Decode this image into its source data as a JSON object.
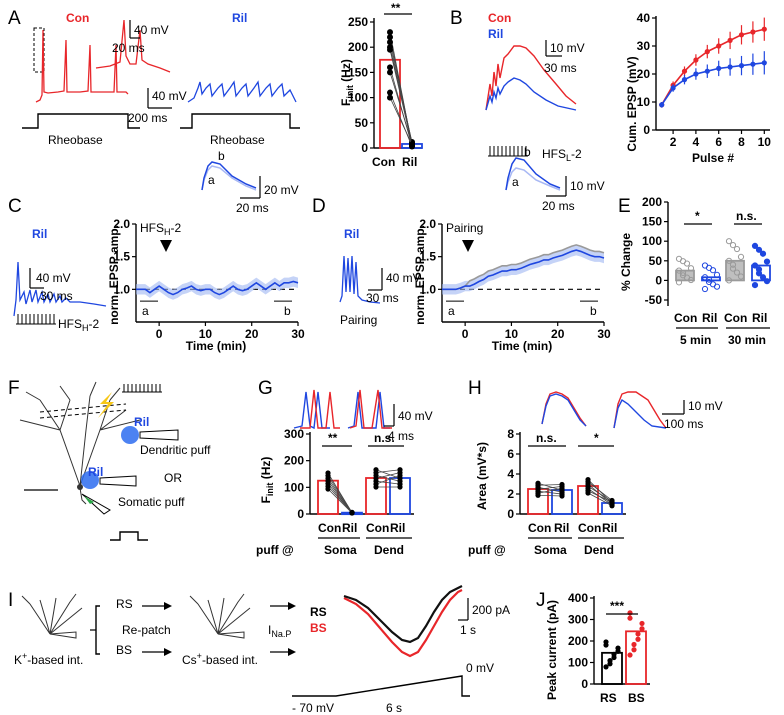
{
  "panels": {
    "A": {
      "label": "A",
      "con": "Con",
      "ril": "Ril",
      "sb_mv": "40 mV",
      "sb_ms": "20 ms",
      "sb_mv2": "40 mV",
      "sb_ms2": "200 ms",
      "step": "Rheobase",
      "bar": {
        "ylabel": "F",
        "ysub": "init",
        "yunit": " (Hz)",
        "ticks": [
          "0",
          "50",
          "100",
          "150",
          "200",
          "250"
        ],
        "ylim": [
          0,
          250
        ],
        "cats": [
          "Con",
          "Ril"
        ],
        "means": [
          175,
          8
        ],
        "sig": "**",
        "pairs": [
          [
            230,
            5
          ],
          [
            220,
            8
          ],
          [
            210,
            10
          ],
          [
            200,
            12
          ],
          [
            195,
            6
          ],
          [
            160,
            4
          ],
          [
            150,
            9
          ],
          [
            110,
            3
          ],
          [
            100,
            7
          ]
        ]
      }
    },
    "B": {
      "label": "B",
      "con": "Con",
      "ril": "Ril",
      "sb_mv": "10 mV",
      "sb_ms": "30 ms",
      "stim": "HFS",
      "stim_sub": "L",
      "stim_suf": "-2"
    },
    "C": {
      "label": "C",
      "ril": "Ril",
      "sb_mv": "40 mV",
      "sb_ms": "30 ms",
      "stim": "HFS",
      "stim_sub": "H",
      "stim_suf": "-2",
      "ins_mv": "20 mV",
      "ins_ms": "20 ms",
      "ins_a": "a",
      "ins_b": "b",
      "ylabel": "norm. EPSP amp.",
      "xlabel": "Time (min)",
      "yticks": [
        "1.0",
        "1.5",
        "2.0"
      ],
      "xticks": [
        "0",
        "10",
        "20",
        "30"
      ],
      "marker_a": "a",
      "marker_b": "b",
      "arrow_label": "HFS"
    },
    "D": {
      "label": "D",
      "ril": "Ril",
      "sb_mv": "40 mV",
      "sb_ms": "30 ms",
      "stim": "Pairing",
      "ins_mv": "10 mV",
      "ins_ms": "20 ms",
      "ins_a": "a",
      "ins_b": "b",
      "ylabel": "norm. EPSP amp.",
      "xlabel": "Time (min)",
      "yticks": [
        "1.0",
        "1.5",
        "2.0"
      ],
      "xticks": [
        "0",
        "10",
        "20",
        "30"
      ],
      "marker_a": "a",
      "marker_b": "b",
      "arrow_label": "Pairing"
    },
    "E": {
      "label": "E",
      "ylabel": "% Change",
      "yticks": [
        "-50",
        "0",
        "50",
        "100",
        "150",
        "200"
      ],
      "sig1": "*",
      "sig2": "n.s.",
      "cats": [
        "Con",
        "Ril",
        "Con",
        "Ril"
      ],
      "groups": [
        "5 min",
        "30 min"
      ],
      "means": [
        25,
        8,
        50,
        38
      ]
    },
    "F": {
      "label": "F",
      "ril1": "Ril",
      "ril2": "Ril",
      "dend": "Dendritic puff",
      "or": "OR",
      "soma": "Somatic puff"
    },
    "G": {
      "label": "G",
      "sb_mv": "40 mV",
      "sb_ms": "4 ms",
      "ylabel": "F",
      "ysub": "init",
      "yunit": " (Hz)",
      "yticks": [
        "0",
        "100",
        "200",
        "300"
      ],
      "sig1": "**",
      "sig2": "n.s.",
      "cats": [
        "Con",
        "Ril",
        "Con",
        "Ril"
      ],
      "puff": "puff @",
      "groups": [
        "Soma",
        "Dend"
      ],
      "means": [
        125,
        5,
        135,
        135
      ]
    },
    "H": {
      "label": "H",
      "sb_mv": "10 mV",
      "sb_ms": "100 ms",
      "ylabel": "Area (mV*s)",
      "yticks": [
        "0",
        "2",
        "4",
        "6",
        "8"
      ],
      "sig1": "n.s.",
      "sig2": "*",
      "cats": [
        "Con",
        "Ril",
        "Con",
        "Ril"
      ],
      "puff": "puff @",
      "groups": [
        "Soma",
        "Dend"
      ],
      "means": [
        2.5,
        2.4,
        2.8,
        1.1
      ]
    },
    "I": {
      "label": "I",
      "rs": "RS",
      "bs": "BS",
      "repatch": "Re-patch",
      "kint": "K",
      "kint_sup": "+",
      "kint_suf": "-based int.",
      "csint": "Cs",
      "csint_sup": "+",
      "csint_suf": "-based int.",
      "inap": "I",
      "inap_sub": "Na.P",
      "leg_rs": "RS",
      "leg_bs": "BS",
      "sb_pa": "200 pA",
      "sb_s": "1 s",
      "v_top": "0 mV",
      "v_bot": "- 70 mV",
      "ramp": "6 s"
    },
    "J": {
      "label": "J",
      "ylabel": "Peak current (pA)",
      "yticks": [
        "0",
        "100",
        "200",
        "300",
        "400"
      ],
      "sig": "***",
      "cats": [
        "RS",
        "BS"
      ],
      "means": [
        145,
        245
      ]
    }
  },
  "colors": {
    "con": "#e8262a",
    "ril": "#1f47e0",
    "gray": "#9a9a9a"
  },
  "chart_data": [
    {
      "type": "bar",
      "panel": "A",
      "categories": [
        "Con",
        "Ril"
      ],
      "values": [
        175,
        8
      ],
      "ylabel": "Finit (Hz)",
      "ylim": [
        0,
        250
      ]
    },
    {
      "type": "line",
      "panel": "B",
      "xlabel": "Pulse #",
      "ylabel": "Cum. EPSP (mV)",
      "x": [
        1,
        2,
        3,
        4,
        5,
        6,
        7,
        8,
        9,
        10
      ],
      "xticks": [
        "2",
        "4",
        "6",
        "8",
        "10"
      ],
      "yticks": [
        "0",
        "10",
        "20",
        "30",
        "40"
      ],
      "ylim": [
        0,
        40
      ],
      "series": [
        {
          "name": "Con",
          "values": [
            9,
            16,
            21,
            25,
            28,
            30,
            32,
            34,
            35,
            36
          ]
        },
        {
          "name": "Ril",
          "values": [
            9,
            15,
            18,
            20,
            21,
            22,
            22.5,
            23,
            23.5,
            24
          ]
        }
      ]
    },
    {
      "type": "line",
      "panel": "C",
      "ylim": [
        0.5,
        2.0
      ],
      "xlim": [
        -5,
        30
      ],
      "values": [
        1.0,
        1.0,
        1.0,
        0.95,
        1.0,
        1.05,
        1.0,
        0.95,
        0.92,
        0.95,
        1.0,
        1.02,
        1.05,
        1.0,
        0.98,
        1.0,
        1.0,
        0.95,
        0.92,
        0.95,
        1.0,
        1.05,
        1.0,
        0.98,
        1.0,
        1.05,
        1.1,
        1.05,
        1.0,
        1.05,
        1.1,
        1.05,
        1.1,
        1.1,
        1.12,
        1.1
      ]
    },
    {
      "type": "line",
      "panel": "D",
      "ylim": [
        0.5,
        2.0
      ],
      "xlim": [
        -5,
        30
      ],
      "values": [
        1.0,
        1.0,
        1.0,
        1.0,
        1.02,
        1.05,
        1.05,
        1.08,
        1.12,
        1.15,
        1.2,
        1.22,
        1.25,
        1.28,
        1.28,
        1.3,
        1.3,
        1.32,
        1.35,
        1.38,
        1.4,
        1.42,
        1.45,
        1.45,
        1.48,
        1.5,
        1.52,
        1.55,
        1.58,
        1.6,
        1.58,
        1.55,
        1.52,
        1.5,
        1.5,
        1.48
      ]
    },
    {
      "type": "bar",
      "panel": "E",
      "categories": [
        "Con",
        "Ril",
        "Con",
        "Ril"
      ],
      "values": [
        25,
        8,
        50,
        38
      ],
      "ylim": [
        -50,
        200
      ]
    },
    {
      "type": "bar",
      "panel": "G",
      "categories": [
        "Con",
        "Ril",
        "Con",
        "Ril"
      ],
      "values": [
        125,
        5,
        135,
        135
      ],
      "ylim": [
        0,
        300
      ]
    },
    {
      "type": "bar",
      "panel": "H",
      "categories": [
        "Con",
        "Ril",
        "Con",
        "Ril"
      ],
      "values": [
        2.5,
        2.4,
        2.8,
        1.1
      ],
      "ylim": [
        0,
        8
      ]
    },
    {
      "type": "bar",
      "panel": "J",
      "categories": [
        "RS",
        "BS"
      ],
      "values": [
        145,
        245
      ],
      "ylim": [
        0,
        400
      ]
    }
  ]
}
